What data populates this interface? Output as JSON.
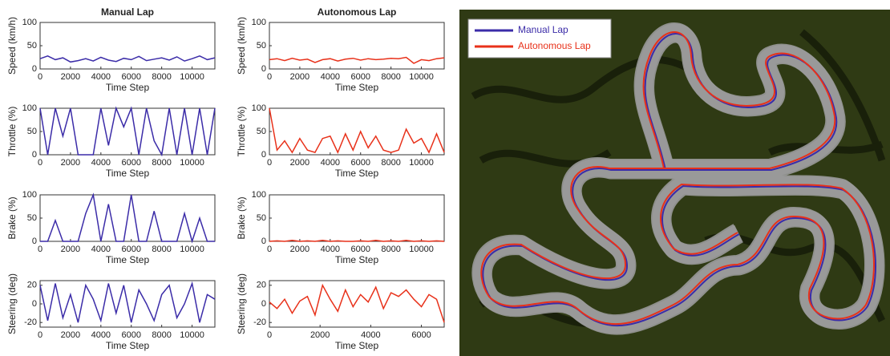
{
  "chart_data": [
    {
      "type": "line",
      "title": "Manual Lap",
      "ylabel": "Speed (km/h)",
      "xlabel": "Time Step",
      "x": [
        0,
        500,
        1000,
        1500,
        2000,
        2500,
        3000,
        3500,
        4000,
        4500,
        5000,
        5500,
        6000,
        6500,
        7000,
        7500,
        8000,
        8500,
        9000,
        9500,
        10000,
        10500,
        11000,
        11500
      ],
      "series": [
        {
          "color": "#3b2ca8",
          "values": [
            22,
            28,
            20,
            24,
            15,
            18,
            22,
            17,
            25,
            19,
            16,
            23,
            20,
            27,
            18,
            21,
            24,
            19,
            26,
            17,
            22,
            28,
            20,
            24
          ]
        }
      ],
      "xlim": [
        0,
        11500
      ],
      "xticks": [
        0,
        2000,
        4000,
        6000,
        8000,
        10000
      ],
      "ylim": [
        0,
        100
      ],
      "yticks": [
        0,
        50,
        100
      ]
    },
    {
      "type": "line",
      "ylabel": "Throttle (%)",
      "xlabel": "Time Step",
      "x": [
        0,
        500,
        1000,
        1500,
        2000,
        2500,
        3000,
        3500,
        4000,
        4500,
        5000,
        5500,
        6000,
        6500,
        7000,
        7500,
        8000,
        8500,
        9000,
        9500,
        10000,
        10500,
        11000,
        11500
      ],
      "series": [
        {
          "color": "#3b2ca8",
          "values": [
            100,
            0,
            100,
            40,
            100,
            0,
            0,
            0,
            100,
            20,
            100,
            60,
            100,
            0,
            100,
            30,
            0,
            100,
            0,
            100,
            0,
            100,
            0,
            100
          ]
        }
      ],
      "xlim": [
        0,
        11500
      ],
      "xticks": [
        0,
        2000,
        4000,
        6000,
        8000,
        10000
      ],
      "ylim": [
        0,
        100
      ],
      "yticks": [
        0,
        50,
        100
      ]
    },
    {
      "type": "line",
      "ylabel": "Brake (%)",
      "xlabel": "Time Step",
      "x": [
        0,
        500,
        1000,
        1500,
        2000,
        2500,
        3000,
        3500,
        4000,
        4500,
        5000,
        5500,
        6000,
        6500,
        7000,
        7500,
        8000,
        8500,
        9000,
        9500,
        10000,
        10500,
        11000,
        11500
      ],
      "series": [
        {
          "color": "#3b2ca8",
          "values": [
            0,
            0,
            45,
            0,
            0,
            0,
            60,
            100,
            0,
            80,
            0,
            0,
            100,
            0,
            0,
            65,
            0,
            0,
            0,
            60,
            0,
            50,
            0,
            0
          ]
        }
      ],
      "xlim": [
        0,
        11500
      ],
      "xticks": [
        0,
        2000,
        4000,
        6000,
        8000,
        10000
      ],
      "ylim": [
        0,
        100
      ],
      "yticks": [
        0,
        50,
        100
      ]
    },
    {
      "type": "line",
      "ylabel": "Steering (deg)",
      "xlabel": "Time Step",
      "x": [
        0,
        500,
        1000,
        1500,
        2000,
        2500,
        3000,
        3500,
        4000,
        4500,
        5000,
        5500,
        6000,
        6500,
        7000,
        7500,
        8000,
        8500,
        9000,
        9500,
        10000,
        10500,
        11000,
        11500
      ],
      "series": [
        {
          "color": "#3b2ca8",
          "values": [
            20,
            -18,
            22,
            -15,
            10,
            -20,
            20,
            5,
            -18,
            22,
            -10,
            20,
            -20,
            15,
            0,
            -18,
            10,
            20,
            -15,
            0,
            22,
            -20,
            10,
            5
          ]
        }
      ],
      "xlim": [
        0,
        11500
      ],
      "xticks": [
        0,
        2000,
        4000,
        6000,
        8000,
        10000
      ],
      "ylim": [
        -25,
        25
      ],
      "yticks": [
        -20,
        0,
        20
      ]
    },
    {
      "type": "line",
      "title": "Autonomous Lap",
      "ylabel": "Speed (km/h)",
      "xlabel": "Time Step",
      "x": [
        0,
        500,
        1000,
        1500,
        2000,
        2500,
        3000,
        3500,
        4000,
        4500,
        5000,
        5500,
        6000,
        6500,
        7000,
        7500,
        8000,
        8500,
        9000,
        9500,
        10000,
        10500,
        11000,
        11500
      ],
      "series": [
        {
          "color": "#e8311a",
          "values": [
            20,
            22,
            18,
            23,
            19,
            21,
            14,
            20,
            22,
            17,
            21,
            23,
            19,
            22,
            20,
            21,
            23,
            22,
            25,
            12,
            20,
            18,
            22,
            24
          ]
        }
      ],
      "xlim": [
        0,
        11500
      ],
      "xticks": [
        0,
        2000,
        4000,
        6000,
        8000,
        10000
      ],
      "ylim": [
        0,
        100
      ],
      "yticks": [
        0,
        50,
        100
      ]
    },
    {
      "type": "line",
      "ylabel": "Throttle (%)",
      "xlabel": "Time Step",
      "x": [
        0,
        500,
        1000,
        1500,
        2000,
        2500,
        3000,
        3500,
        4000,
        4500,
        5000,
        5500,
        6000,
        6500,
        7000,
        7500,
        8000,
        8500,
        9000,
        9500,
        10000,
        10500,
        11000,
        11500
      ],
      "series": [
        {
          "color": "#e8311a",
          "values": [
            100,
            10,
            30,
            5,
            35,
            10,
            5,
            35,
            40,
            5,
            45,
            10,
            50,
            15,
            40,
            10,
            5,
            10,
            55,
            25,
            35,
            5,
            45,
            5
          ]
        }
      ],
      "xlim": [
        0,
        11500
      ],
      "xticks": [
        0,
        2000,
        4000,
        6000,
        8000,
        10000
      ],
      "ylim": [
        0,
        100
      ],
      "yticks": [
        0,
        50,
        100
      ]
    },
    {
      "type": "line",
      "ylabel": "Brake (%)",
      "xlabel": "Time Step",
      "x": [
        0,
        500,
        1000,
        1500,
        2000,
        2500,
        3000,
        3500,
        4000,
        4500,
        5000,
        5500,
        6000,
        6500,
        7000,
        7500,
        8000,
        8500,
        9000,
        9500,
        10000,
        10500,
        11000,
        11500
      ],
      "series": [
        {
          "color": "#e8311a",
          "values": [
            0,
            1,
            0,
            2,
            0,
            1,
            0,
            2,
            0,
            1,
            0,
            0,
            1,
            0,
            2,
            0,
            1,
            0,
            2,
            0,
            1,
            0,
            1,
            0
          ]
        }
      ],
      "xlim": [
        0,
        11500
      ],
      "xticks": [
        0,
        2000,
        4000,
        6000,
        8000,
        10000
      ],
      "ylim": [
        0,
        100
      ],
      "yticks": [
        0,
        50,
        100
      ]
    },
    {
      "type": "line",
      "ylabel": "Steering (deg)",
      "xlabel": "Time Step",
      "x": [
        0,
        300,
        600,
        900,
        1200,
        1500,
        1800,
        2100,
        2400,
        2700,
        3000,
        3300,
        3600,
        3900,
        4200,
        4500,
        4800,
        5100,
        5400,
        5700,
        6000,
        6300,
        6600,
        6900
      ],
      "series": [
        {
          "color": "#e8311a",
          "values": [
            2,
            -5,
            5,
            -10,
            3,
            8,
            -12,
            20,
            5,
            -8,
            15,
            -3,
            10,
            2,
            18,
            -5,
            12,
            8,
            15,
            5,
            -3,
            10,
            5,
            -20
          ]
        }
      ],
      "xlim": [
        0,
        6900
      ],
      "xticks": [
        0,
        2000,
        4000,
        6000
      ],
      "ylim": [
        -25,
        25
      ],
      "yticks": [
        -20,
        0,
        20
      ]
    }
  ],
  "map": {
    "legend": [
      {
        "name": "Manual Lap",
        "color": "#3b2ca8"
      },
      {
        "name": "Autonomous Lap",
        "color": "#e8311a"
      }
    ]
  }
}
